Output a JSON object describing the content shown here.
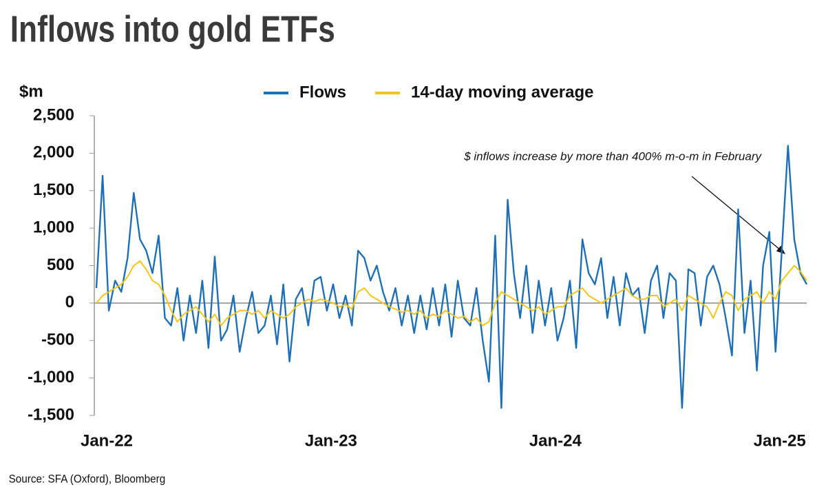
{
  "chart_data": {
    "type": "line",
    "title": "Inflows into gold ETFs",
    "y_label": "$m",
    "annotation": "$ inflows increase by more than 400% m-o-m in February",
    "source": "Source: SFA (Oxford), Bloomberg",
    "legend": "top",
    "categories": [
      "Jan-22",
      null,
      null,
      null,
      null,
      null,
      null,
      null,
      null,
      null,
      null,
      null,
      null,
      null,
      null,
      null,
      null,
      null,
      null,
      null,
      null,
      null,
      null,
      null,
      null,
      null,
      null,
      null,
      null,
      null,
      null,
      null,
      null,
      null,
      null,
      null,
      "Jan-23",
      null,
      null,
      null,
      null,
      null,
      null,
      null,
      null,
      null,
      null,
      null,
      null,
      null,
      null,
      null,
      null,
      null,
      null,
      null,
      null,
      null,
      null,
      null,
      null,
      null,
      null,
      null,
      null,
      null,
      null,
      null,
      null,
      null,
      null,
      null,
      "Jan-24",
      null,
      null,
      null,
      null,
      null,
      null,
      null,
      null,
      null,
      null,
      null,
      null,
      null,
      null,
      null,
      null,
      null,
      null,
      null,
      null,
      null,
      null,
      null,
      null,
      null,
      null,
      null,
      null,
      null,
      null,
      null,
      null,
      null,
      null,
      null,
      "Jan-25",
      null,
      null,
      null,
      null,
      null,
      null
    ],
    "series": [
      {
        "name": "Flows",
        "color": "#1f6fb5",
        "values": [
          200,
          1700,
          -100,
          300,
          150,
          600,
          1470,
          850,
          700,
          400,
          900,
          -200,
          -300,
          200,
          -500,
          100,
          -400,
          300,
          -600,
          620,
          -500,
          -350,
          100,
          -650,
          -200,
          150,
          -400,
          -300,
          100,
          -550,
          250,
          -780,
          50,
          200,
          -300,
          300,
          350,
          -100,
          250,
          -200,
          100,
          -300,
          700,
          600,
          300,
          500,
          150,
          -100,
          200,
          -300,
          100,
          -400,
          100,
          -350,
          200,
          -300,
          250,
          -450,
          300,
          -200,
          -300,
          200,
          -500,
          -1050,
          900,
          -1400,
          1380,
          400,
          -200,
          500,
          -400,
          300,
          -300,
          200,
          -500,
          -200,
          300,
          -600,
          850,
          400,
          250,
          600,
          -200,
          350,
          -300,
          400,
          100,
          200,
          -400,
          300,
          500,
          -200,
          400,
          300,
          -1400,
          450,
          400,
          -300,
          350,
          500,
          250,
          -200,
          -700,
          1250,
          -400,
          300,
          -900,
          500,
          950,
          -650,
          700,
          2100,
          850,
          400,
          250
        ]
      },
      {
        "name": "14-day moving average",
        "color": "#f5c518",
        "values": [
          0,
          100,
          150,
          200,
          250,
          350,
          500,
          560,
          450,
          300,
          250,
          100,
          -100,
          -250,
          -150,
          -100,
          -50,
          -150,
          -250,
          -150,
          -300,
          -200,
          -150,
          -100,
          -100,
          -150,
          -100,
          -200,
          -100,
          -150,
          -200,
          -150,
          -50,
          0,
          50,
          20,
          50,
          30,
          0,
          -50,
          -20,
          -80,
          150,
          200,
          100,
          50,
          0,
          -50,
          -80,
          -120,
          -100,
          -150,
          -100,
          -200,
          -150,
          -180,
          -100,
          -150,
          -200,
          -180,
          -250,
          -200,
          -300,
          -250,
          0,
          150,
          100,
          50,
          0,
          -50,
          -100,
          -50,
          -150,
          -100,
          -50,
          -50,
          100,
          150,
          200,
          100,
          50,
          0,
          50,
          100,
          150,
          200,
          100,
          50,
          50,
          100,
          100,
          -50,
          0,
          50,
          -100,
          100,
          50,
          0,
          -50,
          -200,
          0,
          150,
          100,
          -100,
          50,
          100,
          150,
          0,
          150,
          50,
          300,
          400,
          500,
          420,
          300
        ]
      }
    ],
    "ylim": [
      -1500,
      2500
    ],
    "yticks": [
      {
        "value": -1500,
        "label": "-1,500"
      },
      {
        "value": -1000,
        "label": "-1,000"
      },
      -500,
      0,
      500,
      {
        "value": 1000,
        "label": "1,000"
      },
      {
        "value": 1500,
        "label": "1,500"
      },
      {
        "value": 2000,
        "label": "2,000"
      },
      {
        "value": 2500,
        "label": "2,500"
      }
    ]
  }
}
